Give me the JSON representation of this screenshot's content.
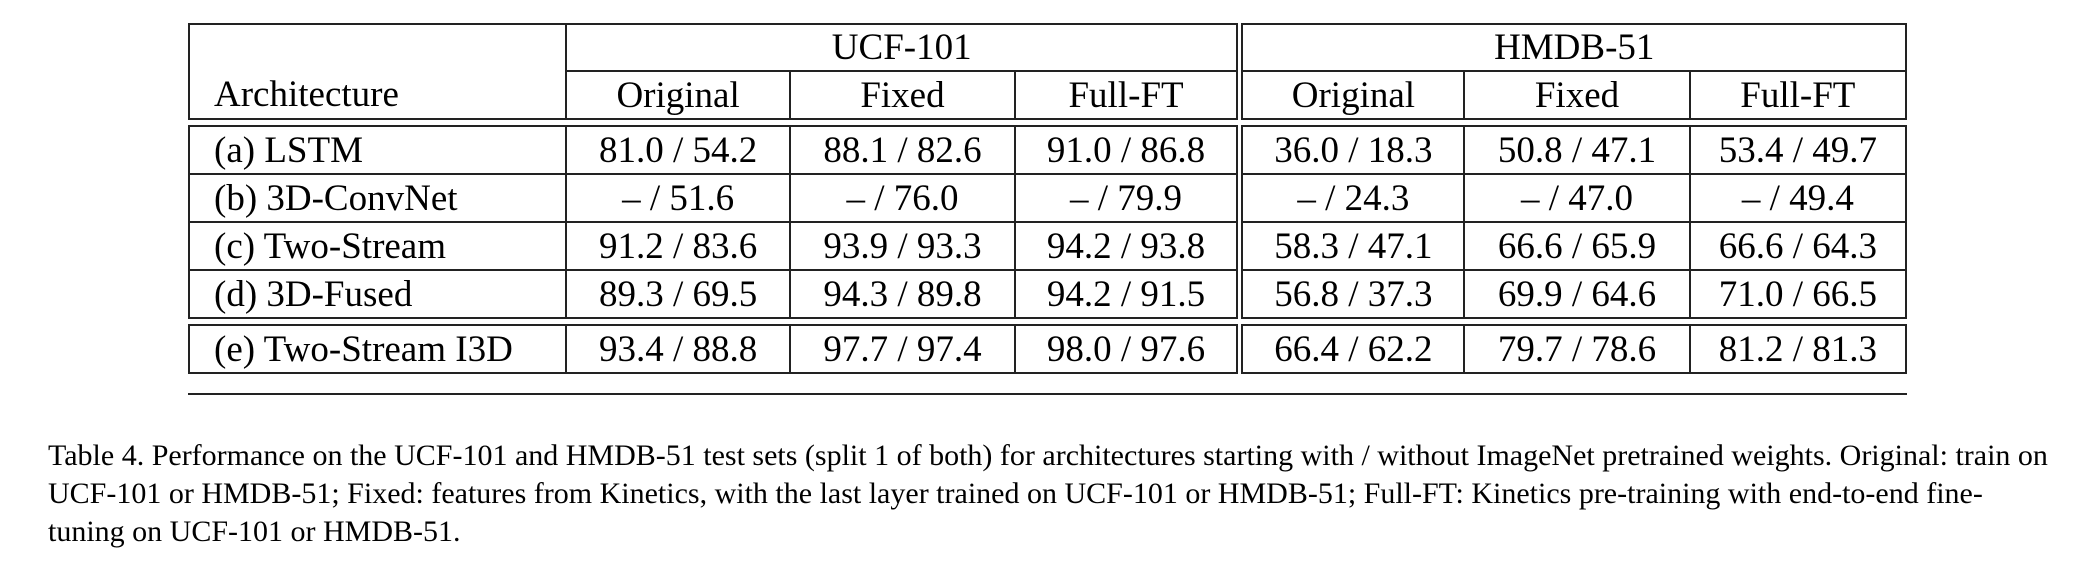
{
  "table": {
    "arch_header": "Architecture",
    "groups": [
      "UCF-101",
      "HMDB-51"
    ],
    "subheaders": [
      "Original",
      "Fixed",
      "Full-FT",
      "Original",
      "Fixed",
      "Full-FT"
    ],
    "rows": [
      {
        "arch": "(a) LSTM",
        "values": [
          "81.0 / 54.2",
          "88.1 / 82.6",
          "91.0 / 86.8",
          "36.0 / 18.3",
          "50.8 / 47.1",
          "53.4 / 49.7"
        ]
      },
      {
        "arch": "(b) 3D-ConvNet",
        "values": [
          "– / 51.6",
          "– / 76.0",
          "– / 79.9",
          "– / 24.3",
          "– / 47.0",
          "– / 49.4"
        ]
      },
      {
        "arch": "(c) Two-Stream",
        "values": [
          "91.2 / 83.6",
          "93.9 / 93.3",
          "94.2 / 93.8",
          "58.3 / 47.1",
          "66.6 / 65.9",
          "66.6 / 64.3"
        ]
      },
      {
        "arch": "(d) 3D-Fused",
        "values": [
          "89.3 / 69.5",
          "94.3 / 89.8",
          "94.2 / 91.5",
          "56.8 / 37.3",
          "69.9 / 64.6",
          "71.0 / 66.5"
        ]
      },
      {
        "arch": "(e) Two-Stream I3D",
        "values": [
          "93.4 / 88.8",
          "97.7 / 97.4",
          "98.0 / 97.6",
          "66.4 / 62.2",
          "79.7 / 78.6",
          "81.2 / 81.3"
        ]
      }
    ]
  },
  "caption": "Table 4. Performance on the UCF-101 and HMDB-51 test sets (split 1 of both) for architectures starting with / without ImageNet pretrained weights. Original: train on UCF-101 or HMDB-51; Fixed: features from Kinetics, with the last layer trained on UCF-101 or HMDB-51; Full-FT: Kinetics pre-training with end-to-end fine-tuning on UCF-101 or HMDB-51."
}
